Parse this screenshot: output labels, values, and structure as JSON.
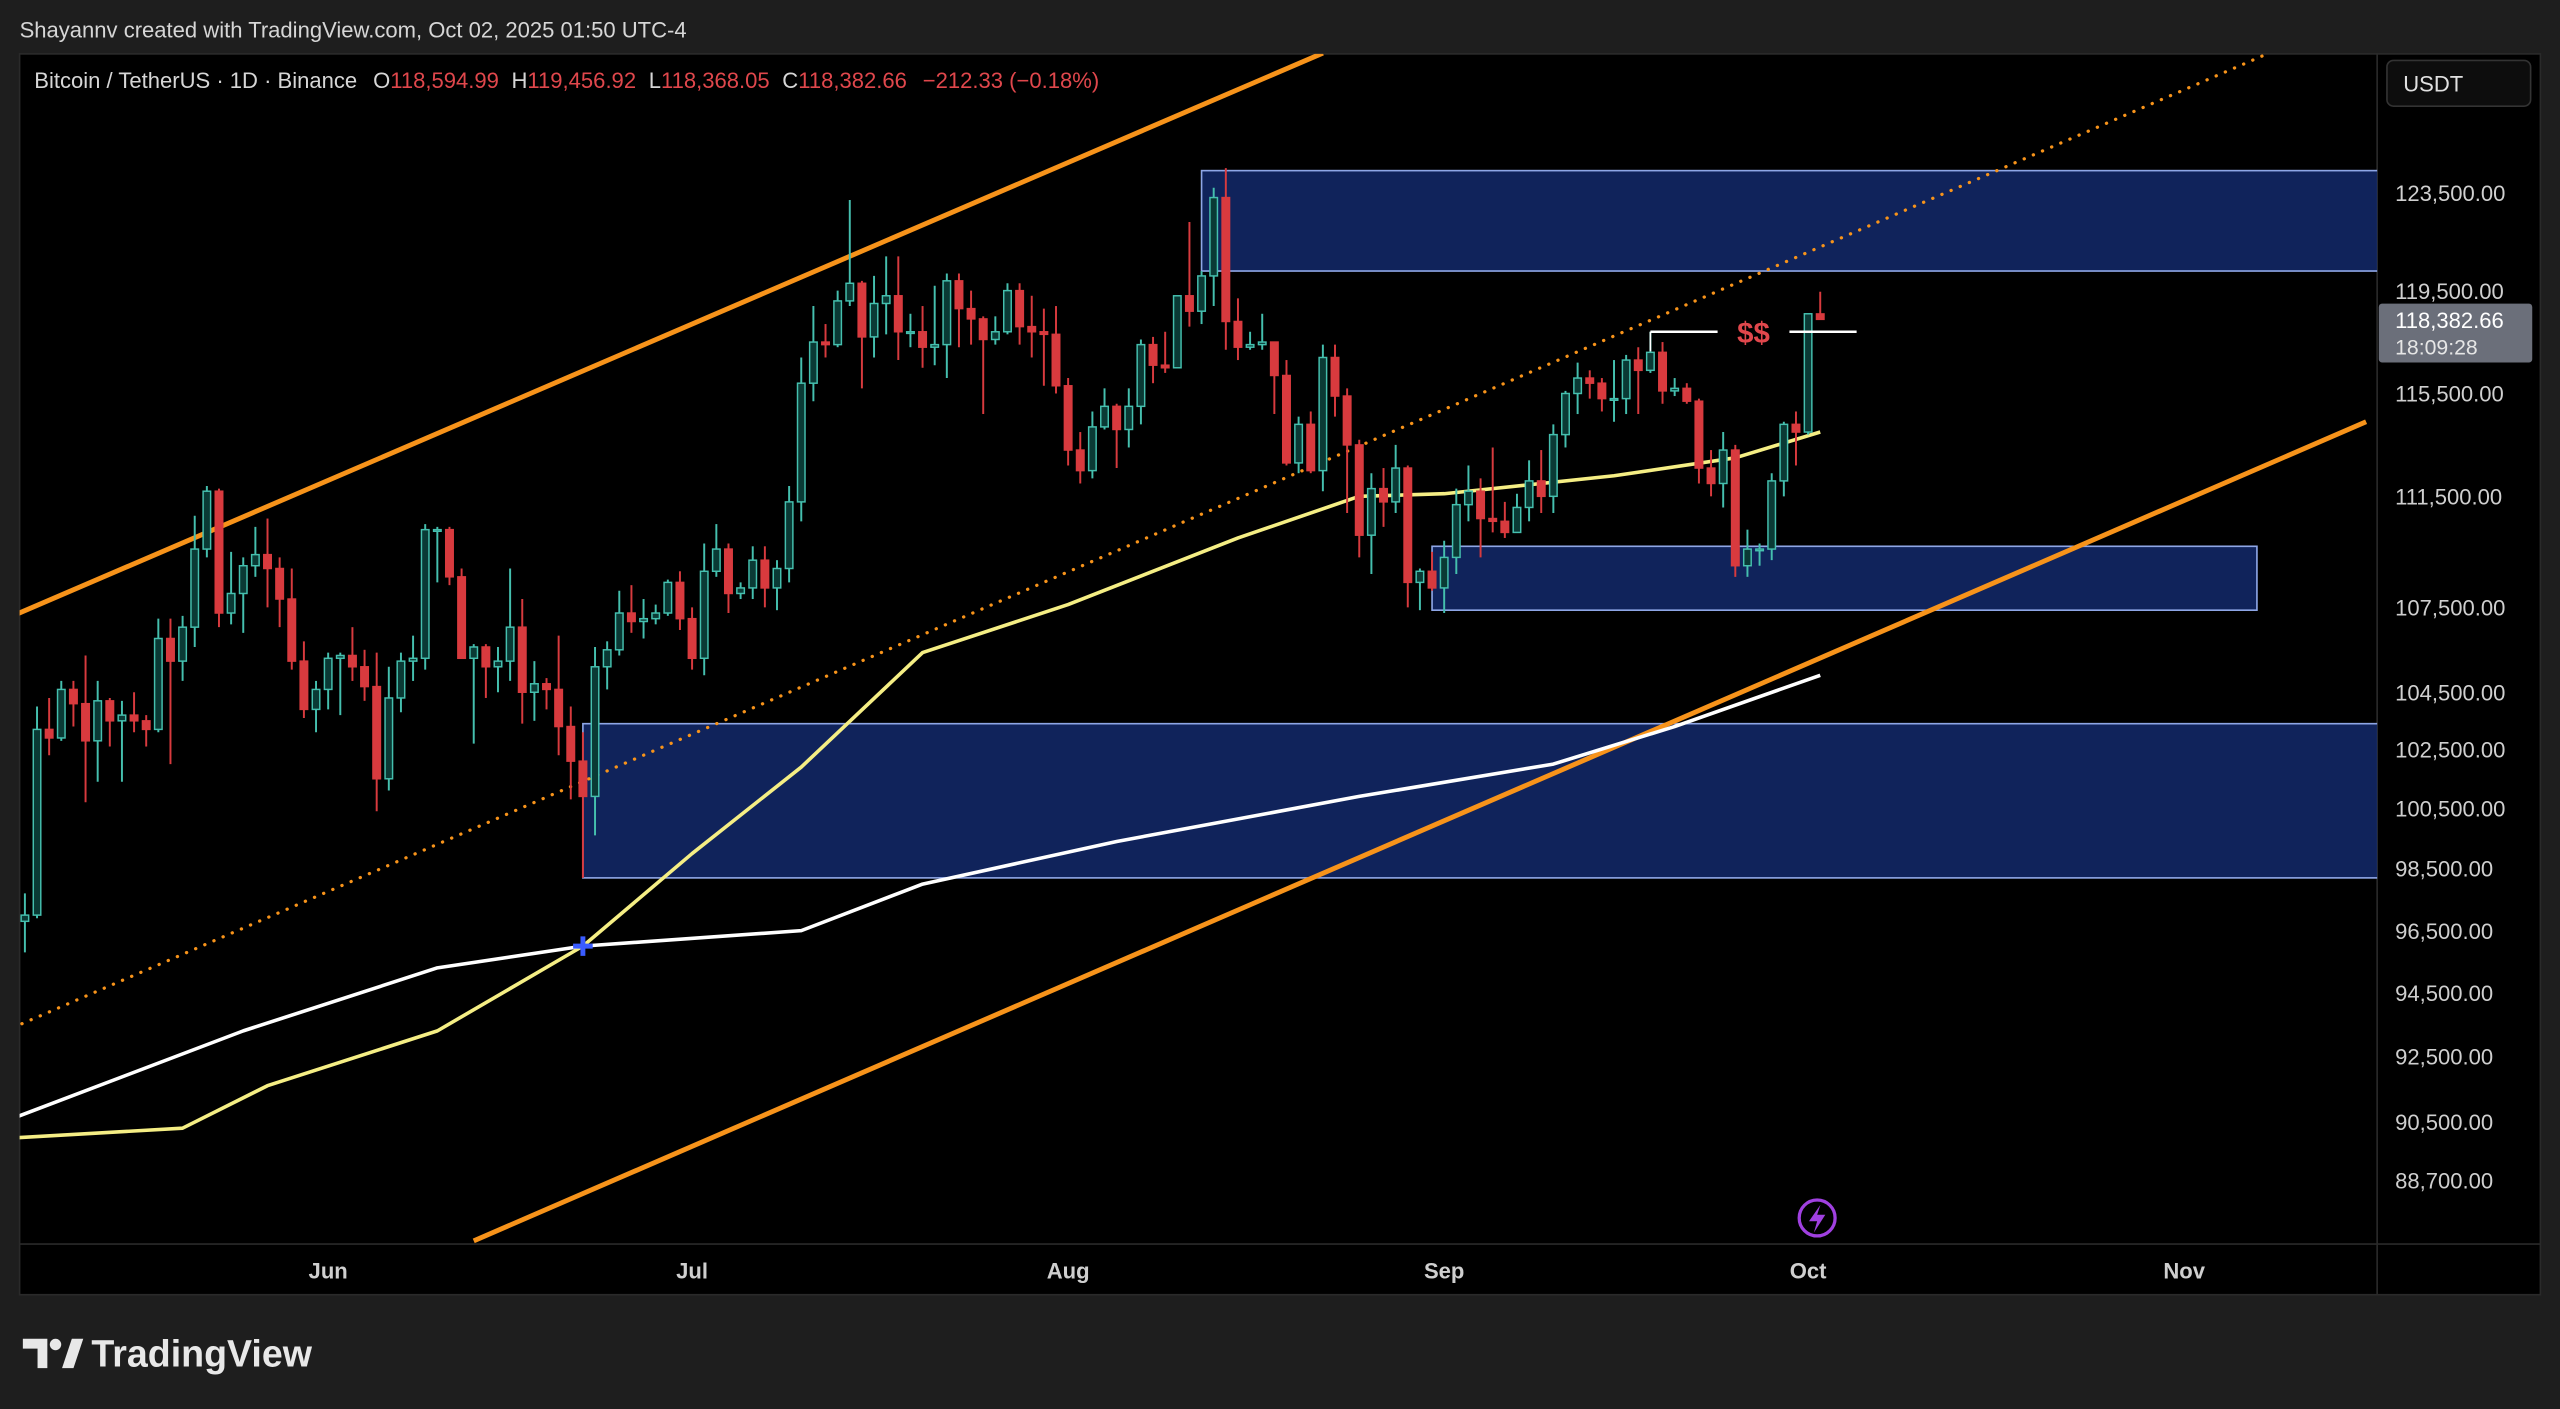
{
  "header": {
    "credit": "Shayannv created with TradingView.com, Oct 02, 2025 01:50 UTC-4",
    "symbol": "Bitcoin / TetherUS · 1D · Binance",
    "o_label": "O",
    "o_value": "118,594.99",
    "h_label": "H",
    "h_value": "119,456.92",
    "l_label": "L",
    "l_value": "118,368.05",
    "c_label": "C",
    "c_value": "118,382.66",
    "change": "−212.33 (−0.18%)"
  },
  "price_axis": {
    "currency_button": "USDT",
    "last_price": "118,382.66",
    "countdown": "18:09:28"
  },
  "annotation": {
    "text": "$$",
    "price": 117900,
    "from": "2025-09-18",
    "to": "2025-10-05"
  },
  "footer": {
    "logo_text": "TradingView"
  },
  "colors": {
    "up_body": "#0a3a35",
    "up_border": "#45bfae",
    "down": "#d83a3e",
    "channel": "#f7931a",
    "ma_fast": "#f5ee84",
    "ma_slow": "#ffffff",
    "zone_fill": "#13296b",
    "zone_border": "#8ea6e6",
    "text_red": "#e0474c",
    "marker": "#3a5cff"
  },
  "chart_data": {
    "type": "candlestick",
    "scale": "log",
    "grid": false,
    "x_ticks": [
      {
        "label": "Jun",
        "date": "2025-06-01"
      },
      {
        "label": "Jul",
        "date": "2025-07-01"
      },
      {
        "label": "Aug",
        "date": "2025-08-01"
      },
      {
        "label": "Sep",
        "date": "2025-09-01"
      },
      {
        "label": "Oct",
        "date": "2025-10-01"
      },
      {
        "label": "Nov",
        "date": "2025-11-01"
      }
    ],
    "y_ticks": [
      "123,500.00",
      "119,500.00",
      "115,500.00",
      "111,500.00",
      "107,500.00",
      "104,500.00",
      "102,500.00",
      "100,500.00",
      "98,500.00",
      "96,500.00",
      "94,500.00",
      "92,500.00",
      "90,500.00",
      "88,700.00"
    ],
    "first_date": "2025-05-07",
    "candles_ohlc": [
      [
        96800,
        97700,
        95800,
        97000
      ],
      [
        97000,
        104000,
        96900,
        103200
      ],
      [
        103200,
        104300,
        102300,
        102900
      ],
      [
        102900,
        104900,
        102800,
        104600
      ],
      [
        104600,
        104900,
        103300,
        104100
      ],
      [
        104100,
        105800,
        100700,
        102800
      ],
      [
        102800,
        104900,
        101400,
        104200
      ],
      [
        104200,
        104300,
        102600,
        103500
      ],
      [
        103500,
        104200,
        101400,
        103700
      ],
      [
        103700,
        104500,
        103100,
        103500
      ],
      [
        103500,
        103700,
        102600,
        103200
      ],
      [
        103200,
        107100,
        103100,
        106400
      ],
      [
        106400,
        107100,
        102000,
        105600
      ],
      [
        105600,
        107200,
        104900,
        106800
      ],
      [
        106800,
        110800,
        106100,
        109600
      ],
      [
        109600,
        111900,
        109300,
        111700
      ],
      [
        111700,
        111800,
        106800,
        107300
      ],
      [
        107300,
        109500,
        106900,
        108000
      ],
      [
        108000,
        109300,
        106600,
        109000
      ],
      [
        109000,
        110400,
        108600,
        109400
      ],
      [
        109400,
        110700,
        107500,
        108900
      ],
      [
        108900,
        109300,
        106800,
        107800
      ],
      [
        107800,
        108900,
        105300,
        105600
      ],
      [
        105600,
        106300,
        103600,
        103900
      ],
      [
        103900,
        104900,
        103100,
        104600
      ],
      [
        104600,
        105900,
        103900,
        105700
      ],
      [
        105700,
        105900,
        103700,
        105800
      ],
      [
        105800,
        106800,
        104900,
        105400
      ],
      [
        105400,
        106000,
        104200,
        104700
      ],
      [
        104700,
        105900,
        100400,
        101500
      ],
      [
        101500,
        105400,
        101100,
        104300
      ],
      [
        104300,
        105900,
        103800,
        105600
      ],
      [
        105600,
        106500,
        104900,
        105700
      ],
      [
        105700,
        110500,
        105300,
        110300
      ],
      [
        110300,
        110400,
        108400,
        110300
      ],
      [
        110300,
        110400,
        108300,
        108600
      ],
      [
        108600,
        108900,
        105700,
        105700
      ],
      [
        105700,
        106200,
        102700,
        106100
      ],
      [
        106100,
        106200,
        104300,
        105400
      ],
      [
        105400,
        106100,
        104500,
        105600
      ],
      [
        105600,
        108900,
        104900,
        106800
      ],
      [
        106800,
        107800,
        103400,
        104500
      ],
      [
        104500,
        105600,
        103500,
        104800
      ],
      [
        104800,
        105000,
        103900,
        104600
      ],
      [
        104600,
        106500,
        102300,
        103300
      ],
      [
        103300,
        104000,
        100800,
        102100
      ],
      [
        102100,
        103100,
        98200,
        100900
      ],
      [
        100900,
        106100,
        99600,
        105400
      ],
      [
        105400,
        106300,
        104600,
        106000
      ],
      [
        106000,
        108100,
        105800,
        107300
      ],
      [
        107300,
        108300,
        106600,
        107000
      ],
      [
        107000,
        107800,
        106400,
        107100
      ],
      [
        107100,
        107600,
        106900,
        107300
      ],
      [
        107300,
        108500,
        107200,
        108400
      ],
      [
        108400,
        108800,
        106700,
        107100
      ],
      [
        107100,
        107500,
        105300,
        105700
      ],
      [
        105700,
        109800,
        105100,
        108800
      ],
      [
        108800,
        110500,
        108600,
        109600
      ],
      [
        109600,
        109800,
        107300,
        108000
      ],
      [
        108000,
        108400,
        107800,
        108200
      ],
      [
        108200,
        109700,
        107800,
        109200
      ],
      [
        109200,
        109700,
        107500,
        108200
      ],
      [
        108200,
        109200,
        107400,
        108900
      ],
      [
        108900,
        111900,
        108400,
        111300
      ],
      [
        111300,
        116900,
        110600,
        115900
      ],
      [
        115900,
        118900,
        115200,
        117500
      ],
      [
        117500,
        118200,
        116900,
        117400
      ],
      [
        117400,
        119500,
        117300,
        119100
      ],
      [
        119100,
        123200,
        118900,
        119800
      ],
      [
        119800,
        119900,
        115700,
        117700
      ],
      [
        117700,
        120100,
        116900,
        119000
      ],
      [
        119000,
        120900,
        117800,
        119300
      ],
      [
        119300,
        120900,
        116800,
        117900
      ],
      [
        117900,
        118600,
        117300,
        117900
      ],
      [
        117900,
        118900,
        116500,
        117300
      ],
      [
        117300,
        119700,
        116600,
        117400
      ],
      [
        117400,
        120200,
        116100,
        119900
      ],
      [
        119900,
        120200,
        117300,
        118800
      ],
      [
        118800,
        119500,
        117400,
        118400
      ],
      [
        118400,
        118500,
        114700,
        117600
      ],
      [
        117600,
        118500,
        117400,
        117900
      ],
      [
        117900,
        119800,
        117800,
        119500
      ],
      [
        119500,
        119800,
        117400,
        118100
      ],
      [
        118100,
        119300,
        116900,
        117900
      ],
      [
        117900,
        118800,
        115800,
        117800
      ],
      [
        117800,
        118900,
        115500,
        115800
      ],
      [
        115800,
        116100,
        112700,
        113300
      ],
      [
        113300,
        114000,
        112000,
        112500
      ],
      [
        112500,
        114800,
        112200,
        114200
      ],
      [
        114200,
        115700,
        114100,
        115000
      ],
      [
        115000,
        115100,
        112600,
        114100
      ],
      [
        114100,
        115700,
        113400,
        115000
      ],
      [
        115000,
        117600,
        114300,
        117400
      ],
      [
        117400,
        117700,
        115900,
        116600
      ],
      [
        116600,
        117900,
        116300,
        116500
      ],
      [
        116500,
        119300,
        116500,
        119300
      ],
      [
        119300,
        122300,
        118100,
        118700
      ],
      [
        118700,
        120300,
        118200,
        120100
      ],
      [
        120100,
        123700,
        118900,
        123300
      ],
      [
        123300,
        124500,
        117200,
        118300
      ],
      [
        118300,
        119200,
        116800,
        117300
      ],
      [
        117300,
        117900,
        117200,
        117400
      ],
      [
        117400,
        118600,
        117200,
        117500
      ],
      [
        117500,
        117500,
        114700,
        116200
      ],
      [
        116200,
        116800,
        112700,
        112800
      ],
      [
        112800,
        114600,
        112400,
        114300
      ],
      [
        114300,
        114800,
        112400,
        112500
      ],
      [
        112500,
        117400,
        111700,
        116900
      ],
      [
        116900,
        117400,
        114600,
        115400
      ],
      [
        115400,
        115700,
        110900,
        113500
      ],
      [
        113500,
        113700,
        109300,
        110100
      ],
      [
        110100,
        112400,
        108700,
        111800
      ],
      [
        111800,
        112600,
        110400,
        111300
      ],
      [
        111300,
        113500,
        110900,
        112600
      ],
      [
        112600,
        112700,
        107500,
        108400
      ],
      [
        108400,
        108900,
        107400,
        108800
      ],
      [
        108800,
        109500,
        108100,
        108200
      ],
      [
        108200,
        109900,
        107300,
        109300
      ],
      [
        109300,
        111800,
        108700,
        111200
      ],
      [
        111200,
        112700,
        110600,
        111700
      ],
      [
        111700,
        112200,
        109300,
        110700
      ],
      [
        110700,
        113400,
        110200,
        110600
      ],
      [
        110600,
        111300,
        110000,
        110200
      ],
      [
        110200,
        111600,
        110200,
        111100
      ],
      [
        111100,
        112900,
        110600,
        112100
      ],
      [
        112100,
        113300,
        110900,
        111500
      ],
      [
        111500,
        114300,
        110900,
        113900
      ],
      [
        113900,
        115600,
        113400,
        115500
      ],
      [
        115500,
        116700,
        114700,
        116100
      ],
      [
        116100,
        116400,
        115300,
        115900
      ],
      [
        115900,
        116100,
        114800,
        115300
      ],
      [
        115300,
        116800,
        114400,
        115300
      ],
      [
        115300,
        117000,
        114700,
        116800
      ],
      [
        116800,
        117300,
        114700,
        116400
      ],
      [
        116400,
        117900,
        116300,
        117100
      ],
      [
        117100,
        117500,
        115100,
        115600
      ],
      [
        115600,
        116100,
        115400,
        115700
      ],
      [
        115700,
        115900,
        115100,
        115200
      ],
      [
        115200,
        115300,
        112000,
        112600
      ],
      [
        112600,
        113300,
        111500,
        112000
      ],
      [
        112000,
        114000,
        111100,
        113300
      ],
      [
        113300,
        113500,
        108600,
        109000
      ],
      [
        109000,
        110300,
        108600,
        109600
      ],
      [
        109600,
        109800,
        109000,
        109600
      ],
      [
        109600,
        112400,
        109200,
        112100
      ],
      [
        112100,
        114400,
        111500,
        114300
      ],
      [
        114300,
        114800,
        112700,
        114000
      ],
      [
        114000,
        118600,
        113900,
        118600
      ],
      [
        118594.99,
        119456.92,
        118368.05,
        118382.66
      ]
    ],
    "moving_averages": [
      {
        "color": "#f5ee84",
        "points": [
          [
            "2025-05-06",
            90000
          ],
          [
            "2025-05-20",
            90300
          ],
          [
            "2025-05-27",
            91600
          ],
          [
            "2025-06-10",
            93300
          ],
          [
            "2025-06-22",
            96000
          ],
          [
            "2025-07-01",
            99000
          ],
          [
            "2025-07-10",
            101900
          ],
          [
            "2025-07-20",
            105900
          ],
          [
            "2025-08-01",
            107600
          ],
          [
            "2025-08-15",
            110000
          ],
          [
            "2025-08-25",
            111500
          ],
          [
            "2025-09-01",
            111600
          ],
          [
            "2025-09-15",
            112300
          ],
          [
            "2025-09-25",
            113000
          ],
          [
            "2025-10-02",
            114000
          ]
        ]
      },
      {
        "color": "#ffffff",
        "points": [
          [
            "2025-05-06",
            90600
          ],
          [
            "2025-05-25",
            93300
          ],
          [
            "2025-06-10",
            95300
          ],
          [
            "2025-06-22",
            96000
          ],
          [
            "2025-07-10",
            96500
          ],
          [
            "2025-07-20",
            98000
          ],
          [
            "2025-08-05",
            99400
          ],
          [
            "2025-08-25",
            100900
          ],
          [
            "2025-09-10",
            102000
          ],
          [
            "2025-09-20",
            103300
          ],
          [
            "2025-10-02",
            105100
          ]
        ]
      }
    ],
    "trendlines": [
      {
        "style": "solid",
        "from": [
          "2025-05-06",
          107200
        ],
        "to": [
          "2025-08-22",
          129200
        ]
      },
      {
        "style": "solid",
        "from": [
          "2025-06-13",
          86850
        ],
        "to": [
          "2025-11-16",
          114400
        ]
      },
      {
        "style": "dotted",
        "from": [
          "2025-05-06",
          93400
        ],
        "to": [
          "2025-11-08",
          129200
        ]
      }
    ],
    "zones": [
      {
        "from": "2025-08-12",
        "to": "2025-11-17",
        "top": 124400,
        "bottom": 120300
      },
      {
        "from": "2025-08-31",
        "to": "2025-11-07",
        "top": 109700,
        "bottom": 107400
      },
      {
        "from": "2025-06-22",
        "to": "2025-11-17",
        "top": 103400,
        "bottom": 98200
      }
    ],
    "cross_marker": [
      "2025-06-22",
      96000
    ]
  }
}
